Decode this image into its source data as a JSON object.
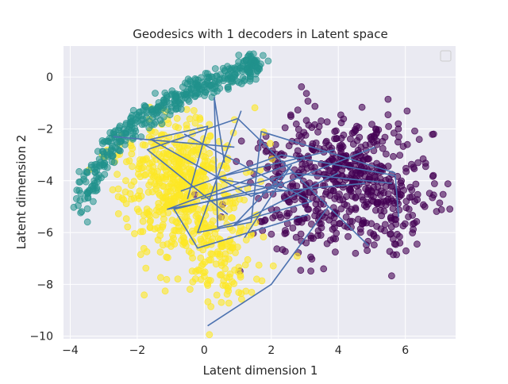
{
  "chart_data": {
    "type": "scatter",
    "title": "Geodesics with 1 decoders in Latent space",
    "xlabel": "Latent dimension 1",
    "ylabel": "Latent dimension 2",
    "xlim": [
      -4.2,
      7.5
    ],
    "ylim": [
      -10.1,
      1.2
    ],
    "x_ticks": [
      -4,
      -2,
      0,
      2,
      4,
      6
    ],
    "y_ticks": [
      -10,
      -8,
      -6,
      -4,
      -2,
      0
    ],
    "grid": true,
    "legend": "top-right (empty)",
    "background": "#eaeaf2",
    "clusters": [
      {
        "color": "#440154",
        "seed": 11,
        "count": 620,
        "alpha": 0.6,
        "blobs": [
          {
            "cx": 4.0,
            "cy": -3.3,
            "sx": 1.2,
            "sy": 1.0,
            "w": 0.55
          },
          {
            "cx": 3.5,
            "cy": -5.2,
            "sx": 1.3,
            "sy": 1.0,
            "w": 0.3
          },
          {
            "cx": 5.8,
            "cy": -4.8,
            "sx": 0.7,
            "sy": 1.0,
            "w": 0.15
          }
        ]
      },
      {
        "color": "#fde725",
        "seed": 23,
        "count": 650,
        "alpha": 0.6,
        "blobs": [
          {
            "cx": -0.8,
            "cy": -3.5,
            "sx": 0.9,
            "sy": 0.9,
            "w": 0.5
          },
          {
            "cx": -0.3,
            "cy": -5.5,
            "sx": 0.9,
            "sy": 1.0,
            "w": 0.35
          },
          {
            "cx": 0.5,
            "cy": -7.8,
            "sx": 0.6,
            "sy": 0.8,
            "w": 0.15
          }
        ]
      },
      {
        "color": "#21918c",
        "seed": 37,
        "count": 420,
        "alpha": 0.55,
        "arc": [
          [
            -3.7,
            -5.0
          ],
          [
            -3.2,
            -3.4
          ],
          [
            -2.6,
            -2.4
          ],
          [
            -1.7,
            -1.4
          ],
          [
            -0.8,
            -0.8
          ],
          [
            0.2,
            -0.3
          ],
          [
            1.2,
            0.3
          ],
          [
            1.6,
            0.6
          ]
        ],
        "spread": 0.18
      }
    ],
    "geodesics": {
      "color": "#4c72b0",
      "paths": [
        [
          [
            3.9,
            -2.8
          ],
          [
            0.3,
            -3.9
          ],
          [
            2.5,
            -4.4
          ]
        ],
        [
          [
            3.1,
            -5.3
          ],
          [
            -0.2,
            -6.6
          ],
          [
            -0.9,
            -5.1
          ],
          [
            2.4,
            -4.1
          ]
        ],
        [
          [
            5.6,
            -4.1
          ],
          [
            2.6,
            -3.7
          ],
          [
            -0.1,
            -4.7
          ]
        ],
        [
          [
            5.1,
            -2.7
          ],
          [
            1.4,
            -4.6
          ],
          [
            -1.6,
            -2.4
          ],
          [
            0.1,
            -1.9
          ],
          [
            -0.5,
            -4.7
          ]
        ],
        [
          [
            2.9,
            -3.2
          ],
          [
            -1.1,
            -5.1
          ],
          [
            1.4,
            -4.5
          ],
          [
            4.8,
            -4.1
          ]
        ],
        [
          [
            5.7,
            -3.7
          ],
          [
            1.7,
            -2.1
          ],
          [
            1.4,
            -5.6
          ],
          [
            -0.2,
            -6.0
          ],
          [
            1.1,
            -1.3
          ]
        ],
        [
          [
            0.7,
            -5.3
          ],
          [
            -1.7,
            -2.8
          ],
          [
            1.0,
            -1.6
          ],
          [
            4.9,
            -6.5
          ]
        ],
        [
          [
            0.1,
            -9.6
          ],
          [
            2.0,
            -8.0
          ],
          [
            3.7,
            -5.0
          ]
        ],
        [
          [
            0.6,
            -3.3
          ],
          [
            0.3,
            -0.8
          ],
          [
            0.4,
            -5.8
          ],
          [
            3.2,
            -4.8
          ],
          [
            -0.6,
            -2.2
          ]
        ],
        [
          [
            5.8,
            -5.4
          ],
          [
            5.7,
            -3.8
          ],
          [
            2.3,
            -3.0
          ],
          [
            -0.7,
            -4.4
          ]
        ],
        [
          [
            0.9,
            -2.7
          ],
          [
            -2.7,
            -2.3
          ],
          [
            0.0,
            -2.6
          ]
        ],
        [
          [
            4.0,
            -3.7
          ],
          [
            0.9,
            -5.7
          ],
          [
            2.6,
            -3.4
          ],
          [
            1.2,
            -6.2
          ]
        ]
      ]
    }
  }
}
